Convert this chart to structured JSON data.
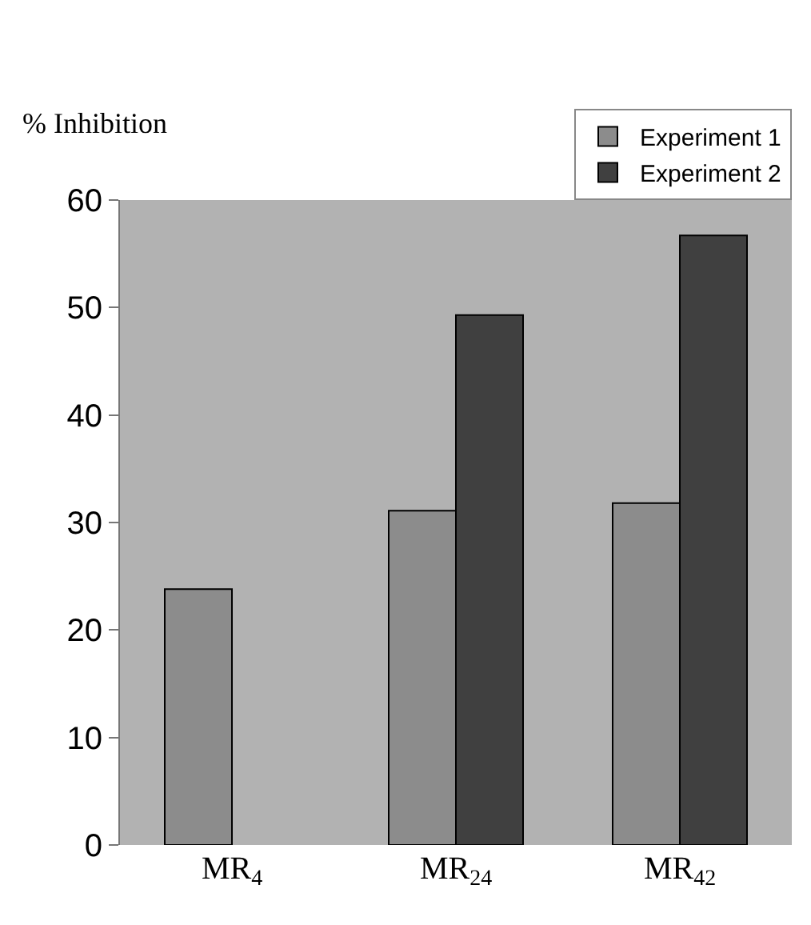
{
  "chart_data": {
    "type": "bar",
    "ylabel": "% Inhibition",
    "categories": [
      "MR$_{4}$",
      "MR$_{24}$",
      "MR$_{42}$"
    ],
    "series": [
      {
        "name": "Experiment 1",
        "color": "#8c8c8c",
        "values": [
          23.8,
          31.1,
          31.8
        ]
      },
      {
        "name": "Experiment 2",
        "color": "#404040",
        "values": [
          null,
          49.3,
          56.7
        ]
      }
    ],
    "ylim": [
      0,
      60
    ],
    "yticks": [
      0,
      10,
      20,
      30,
      40,
      50,
      60
    ],
    "grid": false,
    "legend": "top right"
  }
}
